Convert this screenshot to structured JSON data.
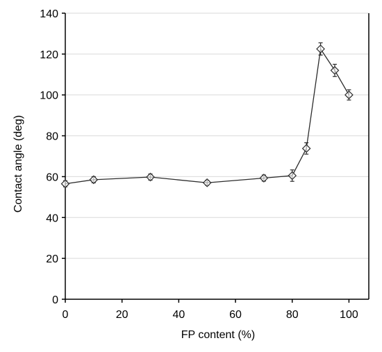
{
  "chart_data": {
    "type": "line",
    "title": "",
    "xlabel": "FP content (%)",
    "ylabel": "Contact angle (deg)",
    "xlim": [
      0,
      107
    ],
    "ylim": [
      0,
      140
    ],
    "xticks": [
      0,
      20,
      40,
      60,
      80,
      100
    ],
    "yticks": [
      0,
      20,
      40,
      60,
      80,
      100,
      120,
      140
    ],
    "grid": "horizontal",
    "legend": "none",
    "marker": "diamond",
    "series": [
      {
        "x": [
          0,
          10,
          30,
          50,
          70,
          80,
          85,
          90,
          95,
          100
        ],
        "y": [
          56.5,
          58.5,
          59.8,
          57,
          59.3,
          60.5,
          73.8,
          122.5,
          112,
          100
        ],
        "error": [
          1.5,
          1.5,
          1.5,
          1.2,
          1.5,
          2.8,
          2.8,
          3.0,
          3.0,
          2.5
        ]
      }
    ],
    "colors": {
      "line": "#2b2b2b",
      "grid": "#d9d9d9",
      "axis": "#000000",
      "marker_fill": "#ffffff"
    }
  }
}
